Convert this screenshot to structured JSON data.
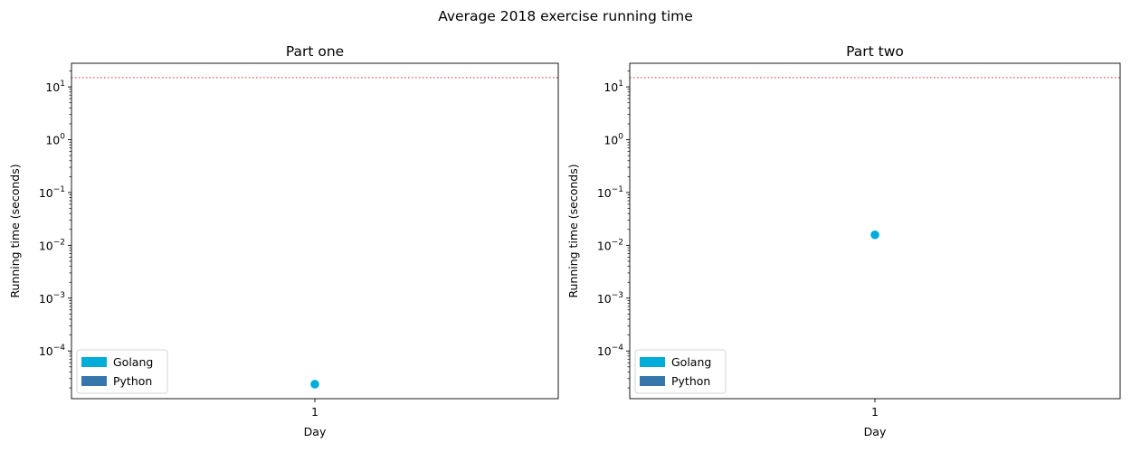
{
  "figure": {
    "suptitle": "Average 2018 exercise running time"
  },
  "colors": {
    "golang": "#00ADD8",
    "python": "#3776AB",
    "threshold": "#E05555"
  },
  "chart_data": [
    {
      "type": "scatter",
      "title": "Part one",
      "xlabel": "Day",
      "ylabel": "Running time (seconds)",
      "yscale": "log",
      "ylim": [
        1.25e-05,
        28
      ],
      "categories": [
        "1"
      ],
      "x": [
        1
      ],
      "xlim": [
        0,
        2
      ],
      "y_ticks": [
        {
          "value": 0.0001,
          "base": "10",
          "exp": "−4"
        },
        {
          "value": 0.001,
          "base": "10",
          "exp": "−3"
        },
        {
          "value": 0.01,
          "base": "10",
          "exp": "−2"
        },
        {
          "value": 0.1,
          "base": "10",
          "exp": "−1"
        },
        {
          "value": 1,
          "base": "10",
          "exp": "0"
        },
        {
          "value": 10,
          "base": "10",
          "exp": "1"
        }
      ],
      "threshold": 15,
      "series": [
        {
          "name": "Golang",
          "values": [
            2.35e-05
          ]
        },
        {
          "name": "Python",
          "values": []
        }
      ],
      "legend": {
        "position": "lower-left",
        "entries": [
          "Golang",
          "Python"
        ]
      },
      "grid": false
    },
    {
      "type": "scatter",
      "title": "Part two",
      "xlabel": "Day",
      "ylabel": "Running time (seconds)",
      "yscale": "log",
      "ylim": [
        1.25e-05,
        28
      ],
      "categories": [
        "1"
      ],
      "x": [
        1
      ],
      "xlim": [
        0,
        2
      ],
      "y_ticks": [
        {
          "value": 0.0001,
          "base": "10",
          "exp": "−4"
        },
        {
          "value": 0.001,
          "base": "10",
          "exp": "−3"
        },
        {
          "value": 0.01,
          "base": "10",
          "exp": "−2"
        },
        {
          "value": 0.1,
          "base": "10",
          "exp": "−1"
        },
        {
          "value": 1,
          "base": "10",
          "exp": "0"
        },
        {
          "value": 10,
          "base": "10",
          "exp": "1"
        }
      ],
      "threshold": 15,
      "series": [
        {
          "name": "Golang",
          "values": [
            0.0158
          ]
        },
        {
          "name": "Python",
          "values": []
        }
      ],
      "legend": {
        "position": "lower-left",
        "entries": [
          "Golang",
          "Python"
        ]
      },
      "grid": false
    }
  ]
}
